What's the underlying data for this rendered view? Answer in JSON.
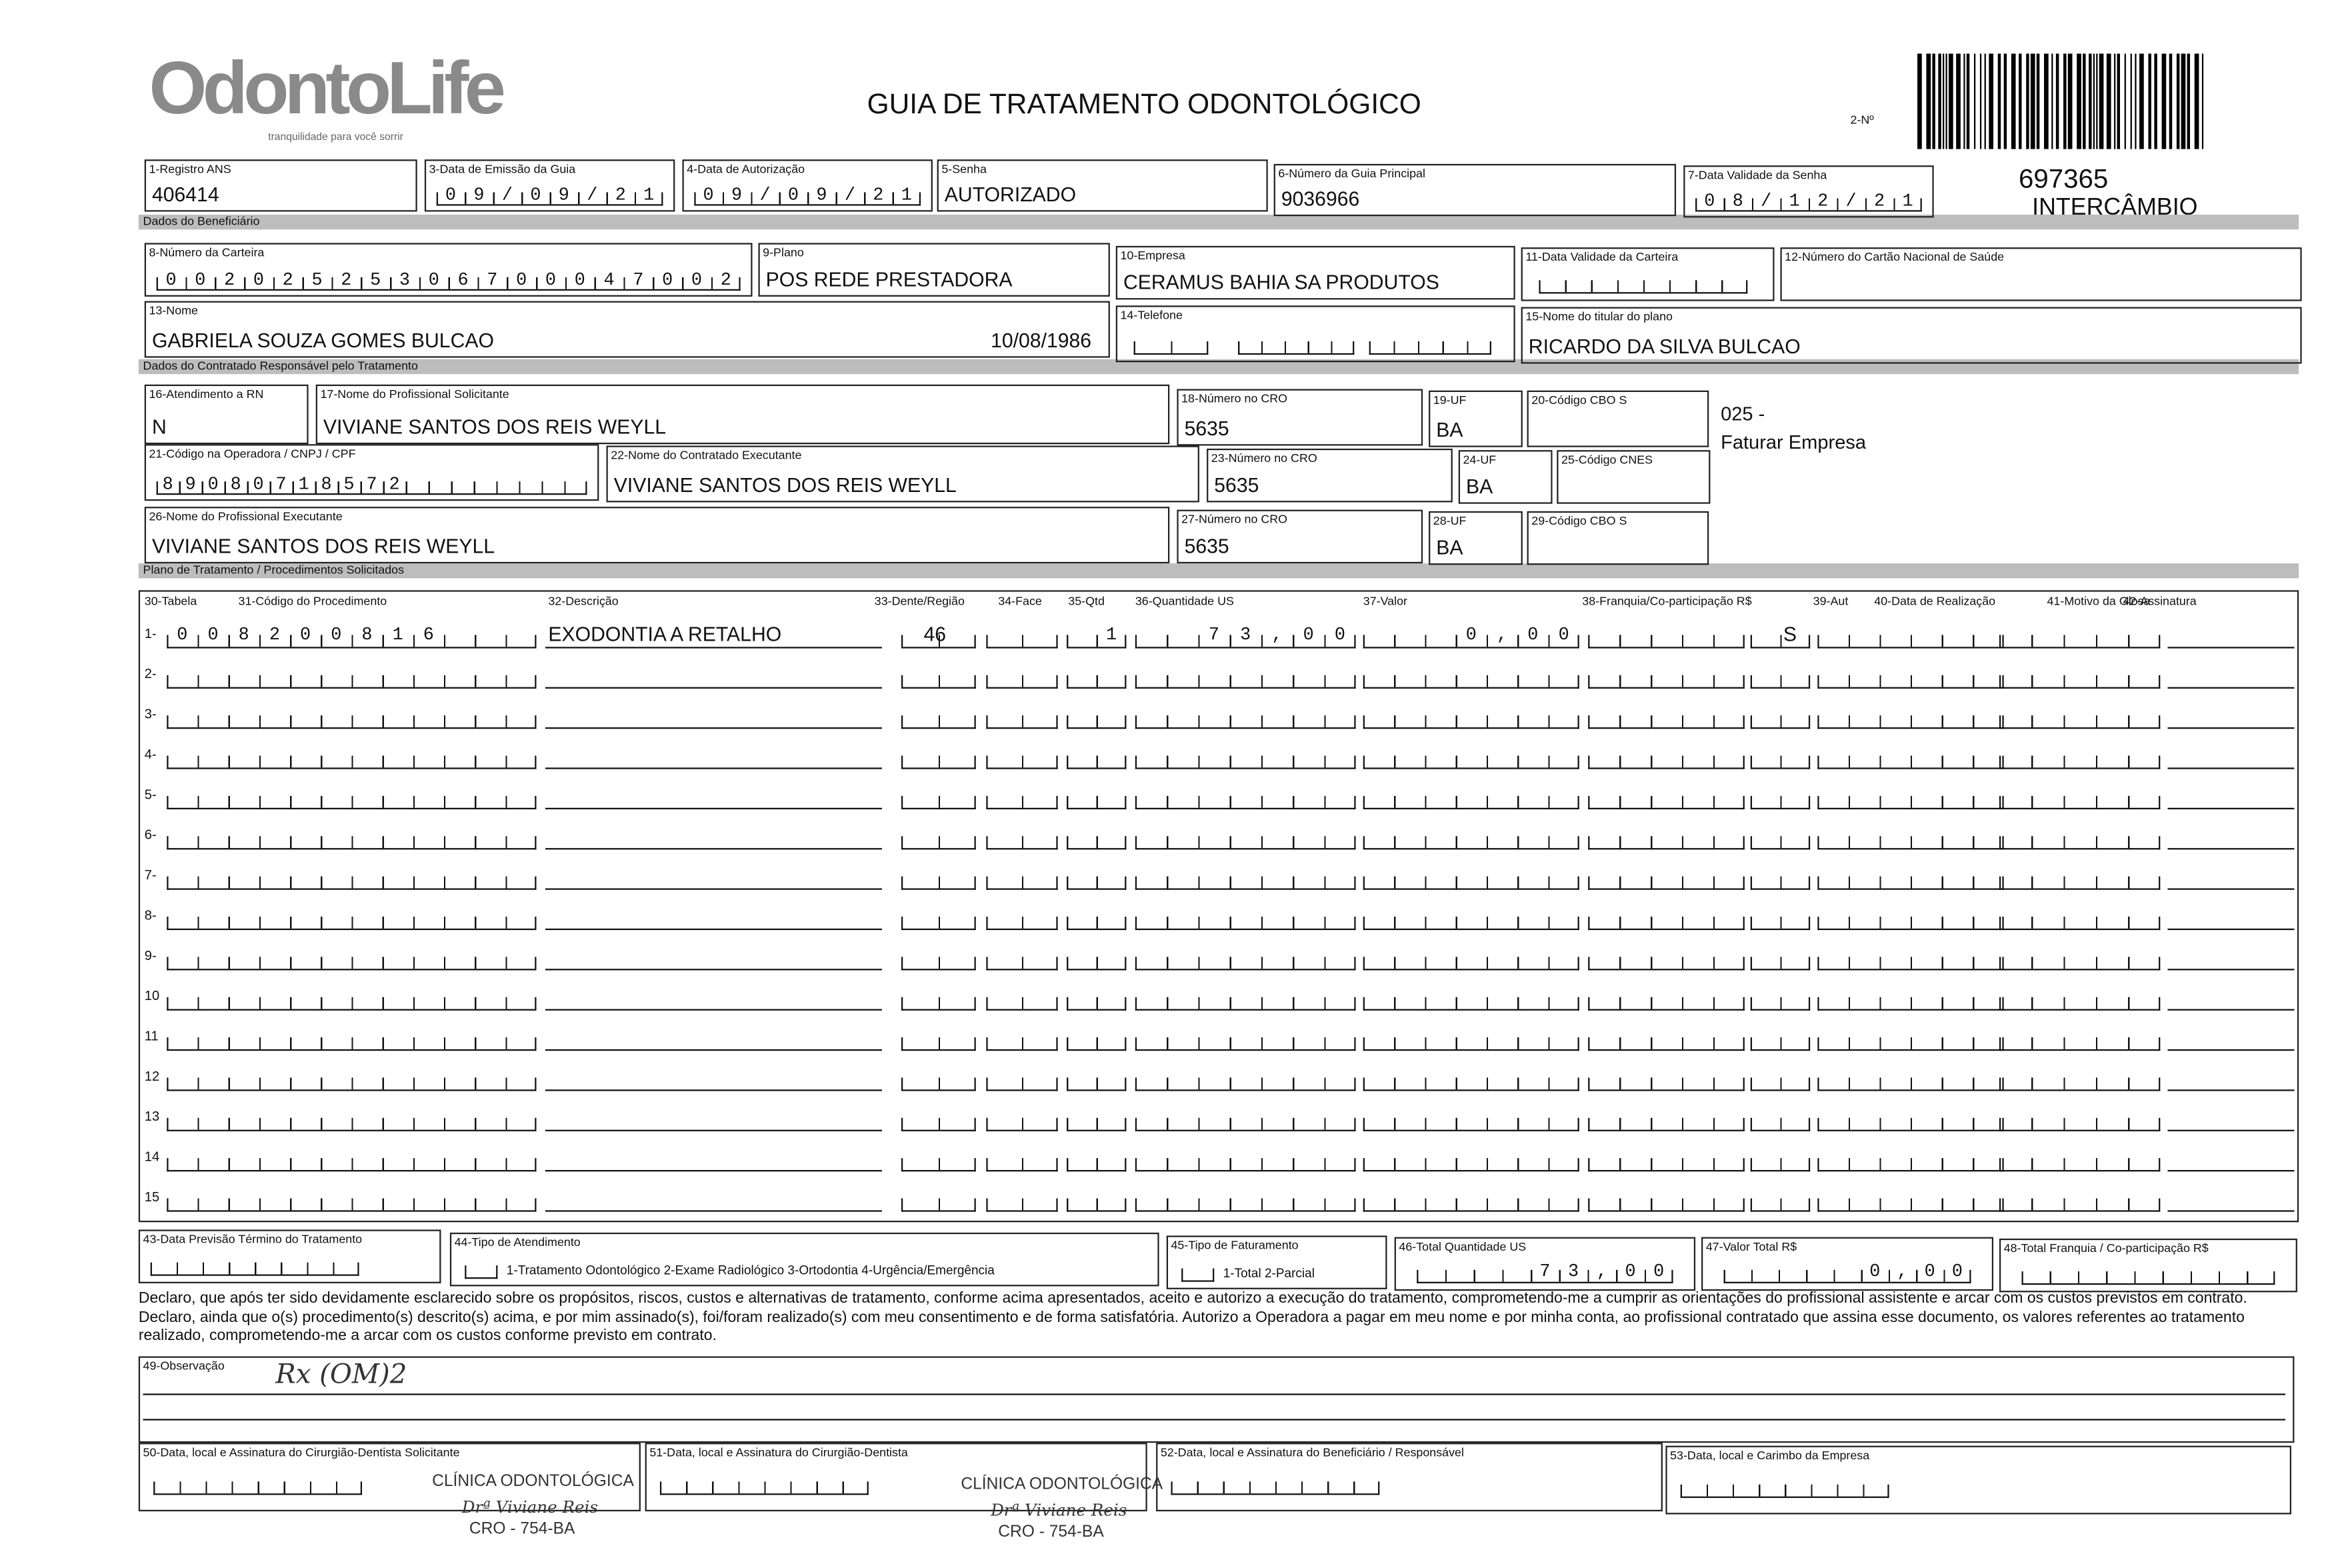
{
  "header": {
    "logo": "OdontoLife",
    "tagline": "tranquilidade para você sorrir",
    "title": "GUIA DE TRATAMENTO ODONTOLÓGICO",
    "number_label": "2-Nº",
    "guide_number": "697365",
    "guide_type": "INTERCÂMBIO"
  },
  "sections": [
    "Dados do Beneficiário",
    "Dados do Contratado Responsável pelo Tratamento",
    "Plano de Tratamento / Procedimentos Solicitados"
  ],
  "fields": [
    {
      "label": "1-Registro ANS",
      "value": "406414"
    },
    {
      "label": "3-Data de Emissão da Guia",
      "value": "09/09/21"
    },
    {
      "label": "4-Data de Autorização",
      "value": "09/09/21"
    },
    {
      "label": "5-Senha",
      "value": "AUTORIZADO"
    },
    {
      "label": "6-Número da Guia Principal",
      "value": "9036966"
    },
    {
      "label": "7-Data Validade da Senha",
      "value": "08/12/21"
    },
    {
      "label": "8-Número da Carteira",
      "value": "00202525306700047002"
    },
    {
      "label": "9-Plano",
      "value": "POS REDE PRESTADORA"
    },
    {
      "label": "10-Empresa",
      "value": "CERAMUS BAHIA SA PRODUTOS"
    },
    {
      "label": "11-Data Validade da Carteira"
    },
    {
      "label": "12-Número do Cartão Nacional de Saúde"
    },
    {
      "label": "13-Nome",
      "value": "GABRIELA SOUZA GOMES BULCAO",
      "birth_date": "10/08/1986"
    },
    {
      "label": "14-Telefone"
    },
    {
      "label": "15-Nome do titular do plano",
      "value": "RICARDO DA SILVA BULCAO"
    },
    {
      "label": "16-Atendimento a RN",
      "value": "N"
    },
    {
      "label": "17-Nome do Profissional Solicitante",
      "value": "VIVIANE SANTOS DOS REIS WEYLL"
    },
    {
      "label": "18-Número no CRO",
      "value": "5635"
    },
    {
      "label": "19-UF",
      "value": "BA"
    },
    {
      "label": "20-Código CBO S"
    },
    {
      "label": "21-Código na Operadora / CNPJ / CPF",
      "value": "89080718572"
    },
    {
      "label": "22-Nome do Contratado Executante",
      "value": "VIVIANE SANTOS DOS REIS WEYLL"
    },
    {
      "label": "23-Número no CRO",
      "value": "5635"
    },
    {
      "label": "24-UF",
      "value": "BA"
    },
    {
      "label": "25-Código CNES"
    },
    {
      "label": "26-Nome do Profissional Executante",
      "value": "VIVIANE SANTOS DOS REIS WEYLL"
    },
    {
      "label": "27-Número no CRO",
      "value": "5635"
    },
    {
      "label": "28-UF",
      "value": "BA"
    },
    {
      "label": "29-Código CBO S"
    }
  ],
  "billing_note": [
    "025 -",
    "Faturar Empresa"
  ],
  "procedures": {
    "columns": [
      "30-Tabela",
      "31-Código do Procedimento",
      "32-Descrição",
      "33-Dente/Região",
      "34-Face",
      "35-Qtd",
      "36-Quantidade US",
      "37-Valor",
      "38-Franquia/Co-participação R$",
      "39-Aut",
      "40-Data de Realização",
      "41-Motivo da Glosa",
      "42-Assinatura"
    ],
    "rows": [
      {
        "number": "1-",
        "code": "008200816",
        "description": "EXODONTIA A RETALHO",
        "tooth": "46",
        "quantity": "1",
        "us": "73,00",
        "value": "0,00",
        "authorization": "S"
      },
      {
        "number": "2-"
      },
      {
        "number": "3-"
      },
      {
        "number": "4-"
      },
      {
        "number": "5-"
      },
      {
        "number": "6-"
      },
      {
        "number": "7-"
      },
      {
        "number": "8-"
      },
      {
        "number": "9-"
      },
      {
        "number": "10"
      },
      {
        "number": "11"
      },
      {
        "number": "12"
      },
      {
        "number": "13"
      },
      {
        "number": "14"
      },
      {
        "number": "15"
      }
    ]
  },
  "totals": [
    {
      "label": "43-Data Previsão Término do Tratamento"
    },
    {
      "label": "44-Tipo de Atendimento",
      "options": "1-Tratamento Odontológico 2-Exame Radiológico 3-Ortodontia 4-Urgência/Emergência"
    },
    {
      "label": "45-Tipo de Faturamento",
      "options": "1-Total 2-Parcial"
    },
    {
      "label": "46-Total Quantidade US",
      "value": "73,00"
    },
    {
      "label": "47-Valor Total R$",
      "value": "0,00"
    },
    {
      "label": "48-Total Franquia / Co-participação R$"
    }
  ],
  "declaration": "Declaro, que após ter sido devidamente esclarecido sobre os propósitos, riscos, custos e alternativas de tratamento, conforme acima apresentados, aceito e autorizo a execução do tratamento, comprometendo-me a cumprir as orientações do profissional assistente e arcar com os custos previstos em contrato. Declaro, ainda que o(s) procedimento(s) descrito(s) acima, e por mim assinado(s), foi/foram realizado(s) com meu consentimento e de forma satisfatória. Autorizo a Operadora a pagar em meu nome e por minha conta, ao profissional contratado que assina esse documento, os valores referentes ao tratamento realizado, comprometendo-me a arcar com os custos conforme previsto em contrato.",
  "observation": {
    "label": "49-Observação",
    "value": "Rx (OM)2"
  },
  "signatures": [
    {
      "label": "50-Data, local e Assinatura do Cirurgião-Dentista Solicitante"
    },
    {
      "label": "51-Data, local e Assinatura do Cirurgião-Dentista"
    },
    {
      "label": "52-Data, local e Assinatura do Beneficiário / Responsável"
    },
    {
      "label": "53-Data, local e Carimbo da Empresa"
    }
  ],
  "stamps": [
    {
      "clinic": "CLÍNICA ODONTOLÓGICA",
      "name": "Drª Viviane Reis",
      "cro": "CRO - 754-BA"
    },
    {
      "clinic": "CLÍNICA ODONTOLÓGICA",
      "name": "Drª Viviane Reis",
      "cro": "CRO - 754-BA"
    }
  ]
}
